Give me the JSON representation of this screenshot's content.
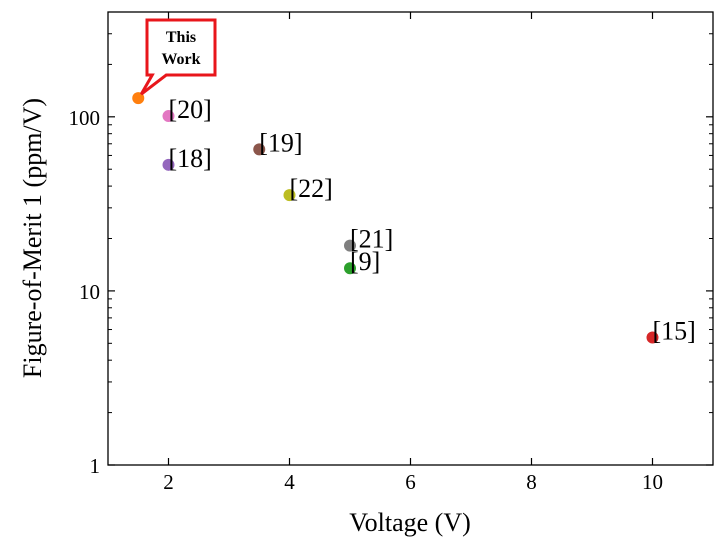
{
  "chart_data": {
    "type": "scatter",
    "title": "",
    "xlabel": "Voltage (V)",
    "ylabel": "Figure-of-Merit 1 (ppm/V)",
    "xlim": [
      1,
      11
    ],
    "ylim": [
      1,
      400
    ],
    "yscale": "log",
    "grid": false,
    "xticks": [
      2,
      4,
      6,
      8,
      10
    ],
    "xtick_labels": [
      "2",
      "4",
      "6",
      "8",
      "10"
    ],
    "yticks": [
      1,
      10,
      100
    ],
    "ytick_labels": [
      "1",
      "10",
      "100"
    ],
    "points": [
      {
        "x": 1.5,
        "y": 128,
        "color": "#ff7f0e",
        "label": ""
      },
      {
        "x": 2,
        "y": 101,
        "color": "#e377c2",
        "label": "[20]"
      },
      {
        "x": 2,
        "y": 53,
        "color": "#9467bd",
        "label": "[18]"
      },
      {
        "x": 3.5,
        "y": 65,
        "color": "#8c564b",
        "label": "[19]"
      },
      {
        "x": 4,
        "y": 35.5,
        "color": "#bcbd22",
        "label": "[22]"
      },
      {
        "x": 5,
        "y": 18.2,
        "color": "#7f7f7f",
        "label": "[21]"
      },
      {
        "x": 5,
        "y": 13.5,
        "color": "#2ca02c",
        "label": "[9]"
      },
      {
        "x": 10,
        "y": 5.4,
        "color": "#d62728",
        "label": "[15]"
      }
    ],
    "callout": {
      "lines": [
        "This",
        "Work"
      ],
      "x": 1.5,
      "y": 128,
      "border_color": "#e8161b"
    }
  }
}
